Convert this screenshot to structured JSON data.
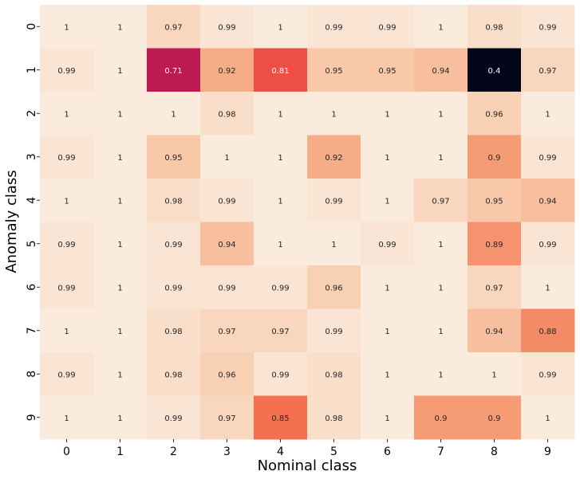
{
  "chart_data": {
    "type": "heatmap",
    "title": "",
    "xlabel": "Nominal class",
    "ylabel": "Anomaly class",
    "x_categories": [
      "0",
      "1",
      "2",
      "3",
      "4",
      "5",
      "6",
      "7",
      "8",
      "9"
    ],
    "y_categories": [
      "0",
      "1",
      "2",
      "3",
      "4",
      "5",
      "6",
      "7",
      "8",
      "9"
    ],
    "values": [
      [
        1,
        1,
        0.97,
        0.99,
        1,
        0.99,
        0.99,
        1,
        0.98,
        0.99
      ],
      [
        0.99,
        1,
        0.71,
        0.92,
        0.81,
        0.95,
        0.95,
        0.94,
        0.4,
        0.97
      ],
      [
        1,
        1,
        1,
        0.98,
        1,
        1,
        1,
        1,
        0.96,
        1
      ],
      [
        0.99,
        1,
        0.95,
        1,
        1,
        0.92,
        1,
        1,
        0.9,
        0.99
      ],
      [
        1,
        1,
        0.98,
        0.99,
        1,
        0.99,
        1,
        0.97,
        0.95,
        0.94
      ],
      [
        0.99,
        1,
        0.99,
        0.94,
        1,
        1,
        0.99,
        1,
        0.89,
        0.99
      ],
      [
        0.99,
        1,
        0.99,
        0.99,
        0.99,
        0.96,
        1,
        1,
        0.97,
        1
      ],
      [
        1,
        1,
        0.98,
        0.97,
        0.97,
        0.99,
        1,
        1,
        0.94,
        0.88
      ],
      [
        0.99,
        1,
        0.98,
        0.96,
        0.99,
        0.98,
        1,
        1,
        1,
        0.99
      ],
      [
        1,
        1,
        0.99,
        0.97,
        0.85,
        0.98,
        1,
        0.9,
        0.9,
        1
      ]
    ],
    "colormap": "rocket",
    "colorbar": false,
    "annotate": true
  }
}
